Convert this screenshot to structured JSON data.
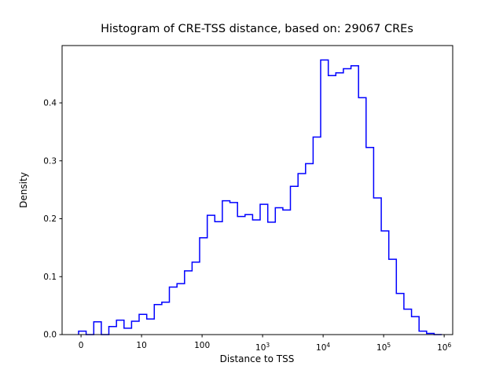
{
  "figure": {
    "background": "#ffffff",
    "title": "Histogram of CRE-TSS distance, based on: 29067 CREs"
  },
  "chart_data": {
    "type": "bar",
    "subtype": "step-histogram",
    "title": "Histogram of CRE-TSS distance, based on: 29067 CREs",
    "xlabel": "Distance to TSS",
    "ylabel": "Density",
    "n_samples": 29067,
    "x_scale": "log10(distance+1), linear-symlog style axis",
    "grid": false,
    "legend": null,
    "line_color": "#0000ff",
    "axis_color": "#000000",
    "xlim_log10": [
      -0.313,
      6.141
    ],
    "ylim": [
      0,
      0.499
    ],
    "bin_start_log10": -0.04,
    "bin_width_log10": 0.125,
    "n_bins": 48,
    "densities": [
      0.006,
      0.0,
      0.022,
      0.0,
      0.014,
      0.025,
      0.011,
      0.023,
      0.035,
      0.027,
      0.052,
      0.056,
      0.082,
      0.088,
      0.11,
      0.125,
      0.167,
      0.206,
      0.195,
      0.231,
      0.228,
      0.204,
      0.207,
      0.198,
      0.225,
      0.194,
      0.219,
      0.215,
      0.256,
      0.278,
      0.295,
      0.341,
      0.474,
      0.447,
      0.452,
      0.459,
      0.464,
      0.409,
      0.323,
      0.236,
      0.179,
      0.13,
      0.071,
      0.044,
      0.031,
      0.006,
      0.002,
      0.0
    ],
    "xticks": [
      {
        "pos": 0,
        "label": "0",
        "exp": null
      },
      {
        "pos": 1,
        "label": "10",
        "exp": null
      },
      {
        "pos": 2,
        "label": "100",
        "exp": null
      },
      {
        "pos": 3,
        "label": "10",
        "exp": "3"
      },
      {
        "pos": 4,
        "label": "10",
        "exp": "4"
      },
      {
        "pos": 5,
        "label": "10",
        "exp": "5"
      },
      {
        "pos": 6,
        "label": "10",
        "exp": "6"
      }
    ],
    "yticks": [
      {
        "value": 0.0,
        "label": "0.0"
      },
      {
        "value": 0.1,
        "label": "0.1"
      },
      {
        "value": 0.2,
        "label": "0.2"
      },
      {
        "value": 0.3,
        "label": "0.3"
      },
      {
        "value": 0.4,
        "label": "0.4"
      }
    ]
  }
}
